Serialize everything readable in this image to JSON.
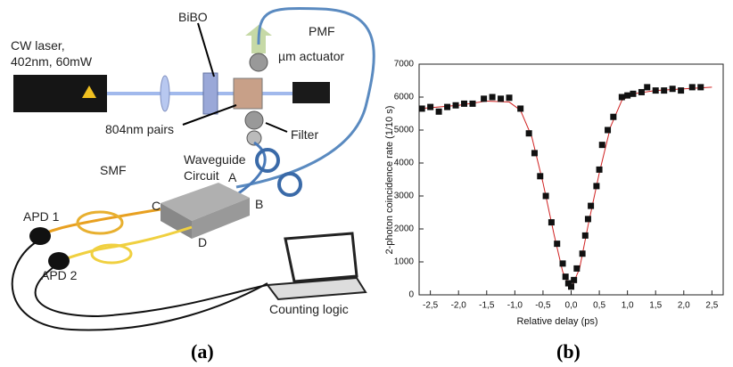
{
  "figure_a": {
    "labels": {
      "laser_line1": "CW laser,",
      "laser_line2": "402nm, 60mW",
      "crystal": "BiBO",
      "fiber_pm": "PMF",
      "actuator": "µm actuator",
      "pairs": "804nm pairs",
      "filter": "Filter",
      "waveguide_line1": "Waveguide",
      "waveguide_line2": "Circuit",
      "port_a": "A",
      "port_b": "B",
      "port_c": "C",
      "port_d": "D",
      "fiber_sm": "SMF",
      "apd1": "APD 1",
      "apd2": "APD 2",
      "counting": "Counting logic"
    },
    "caption": "(a)"
  },
  "figure_b": {
    "caption": "(b)"
  },
  "chart_data": {
    "type": "scatter",
    "x_label": "Relative delay (ps)",
    "y_label": "2-photon coincidence rate (1/10 s)",
    "x": [
      -2.65,
      -2.5,
      -2.35,
      -2.2,
      -2.05,
      -1.9,
      -1.75,
      -1.55,
      -1.4,
      -1.25,
      -1.1,
      -0.9,
      -0.75,
      -0.65,
      -0.55,
      -0.45,
      -0.35,
      -0.25,
      -0.15,
      -0.1,
      -0.05,
      0.0,
      0.05,
      0.1,
      0.2,
      0.25,
      0.3,
      0.35,
      0.45,
      0.5,
      0.55,
      0.65,
      0.75,
      0.9,
      1.0,
      1.1,
      1.25,
      1.35,
      1.5,
      1.65,
      1.8,
      1.95,
      2.15,
      2.3
    ],
    "values": [
      5650,
      5700,
      5560,
      5700,
      5750,
      5800,
      5800,
      5950,
      6000,
      5950,
      5980,
      5650,
      4900,
      4300,
      3600,
      3000,
      2200,
      1550,
      950,
      550,
      350,
      250,
      450,
      800,
      1250,
      1800,
      2300,
      2700,
      3300,
      3800,
      4550,
      5000,
      5400,
      6000,
      6050,
      6100,
      6150,
      6300,
      6200,
      6200,
      6250,
      6200,
      6300,
      6300
    ],
    "color": "#111111",
    "fit": {
      "x": [
        -2.7,
        -2.0,
        -1.5,
        -1.1,
        -0.9,
        -0.7,
        -0.5,
        -0.3,
        -0.15,
        0.0,
        0.15,
        0.3,
        0.5,
        0.7,
        0.9,
        1.1,
        1.5,
        2.0,
        2.5
      ],
      "values": [
        5650,
        5750,
        5880,
        5850,
        5600,
        4800,
        3400,
        1800,
        700,
        200,
        800,
        2100,
        3700,
        5100,
        5900,
        6100,
        6200,
        6250,
        6300
      ],
      "color": "#d02020"
    },
    "xlim": [
      -2.7,
      2.7
    ],
    "xticks": [
      {
        "value": -2.5,
        "label": "-2,5"
      },
      {
        "value": -2.0,
        "label": "-2,0"
      },
      {
        "value": -1.5,
        "label": "-1,5"
      },
      {
        "value": -1.0,
        "label": "-1,0"
      },
      {
        "value": -0.5,
        "label": "-0,5"
      },
      {
        "value": 0.0,
        "label": "0,0"
      },
      {
        "value": 0.5,
        "label": "0,5"
      },
      {
        "value": 1.0,
        "label": "1,0"
      },
      {
        "value": 1.5,
        "label": "1,5"
      },
      {
        "value": 2.0,
        "label": "2,0"
      },
      {
        "value": 2.5,
        "label": "2,5"
      }
    ],
    "ylim": [
      0,
      7000
    ],
    "yticks": [
      0,
      1000,
      2000,
      3000,
      4000,
      5000,
      6000,
      7000
    ]
  }
}
